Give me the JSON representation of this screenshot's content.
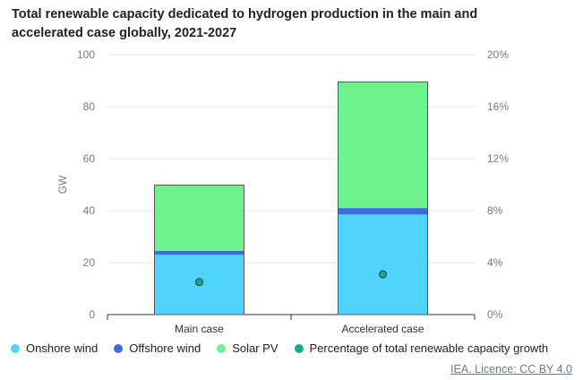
{
  "chart_data": {
    "type": "bar",
    "stacked": true,
    "title": "Total renewable capacity dedicated to hydrogen production in the main and accelerated case globally, 2021-2027",
    "ylabel": "GW",
    "ylim": [
      0,
      100
    ],
    "y_ticks": [
      "0",
      "20",
      "40",
      "60",
      "80",
      "100"
    ],
    "y2lim": [
      0,
      20
    ],
    "y2_ticks": [
      "0%",
      "4%",
      "8%",
      "12%",
      "16%",
      "20%"
    ],
    "categories": [
      "Main case",
      "Accelerated case"
    ],
    "series": [
      {
        "name": "Onshore wind",
        "color": "#4fd3ff",
        "values": [
          23,
          38.5
        ]
      },
      {
        "name": "Offshore wind",
        "color": "#3a6fd8",
        "values": [
          1.5,
          2.5
        ]
      },
      {
        "name": "Solar PV",
        "color": "#6df28e",
        "values": [
          25.3,
          48.5
        ]
      }
    ],
    "markers": {
      "name": "Percentage of total renewable capacity growth",
      "color": "#1aa88f",
      "axis": "right",
      "values": [
        2.5,
        3.1
      ]
    },
    "grid": true
  },
  "source": "IEA. Licence: CC BY 4.0"
}
